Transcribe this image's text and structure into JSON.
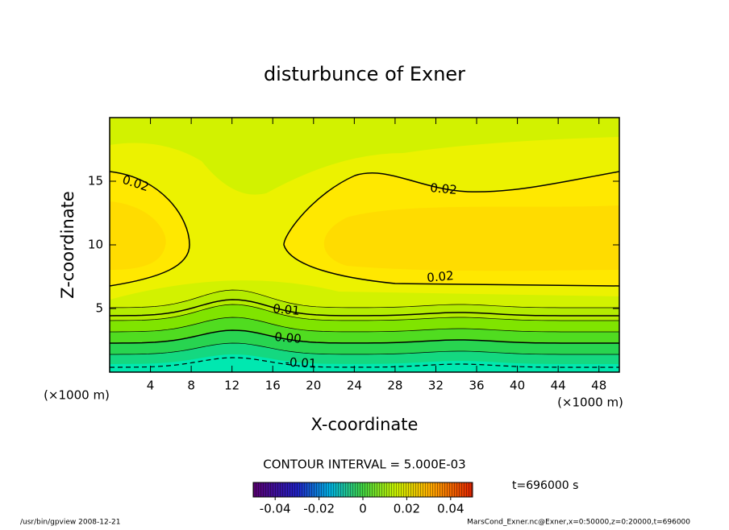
{
  "chart_data": {
    "type": "contour",
    "title": "disturbunce of Exner",
    "x_label": "X-coordinate",
    "y_label": "Z-coordinate",
    "x_unit": "(×1000 m)",
    "y_unit": "(×1000 m)",
    "xlim": [
      0,
      50
    ],
    "ylim": [
      0,
      20
    ],
    "xticks": [
      4,
      8,
      12,
      16,
      20,
      24,
      28,
      32,
      36,
      40,
      44,
      48
    ],
    "yticks": [
      5,
      10,
      15
    ],
    "contour_levels": [
      0.02,
      0.01,
      {
        "value": 0,
        "label": "0.00"
      },
      -0.01
    ],
    "contour_interval_text": "CONTOUR INTERVAL = 5.000E-03",
    "time_text": "t=696000 s",
    "colorbar_lim": [
      -0.05,
      0.05
    ],
    "colorbar_ticks": [
      -0.04,
      -0.02,
      0,
      0.02,
      0.04
    ],
    "footer_left": "/usr/bin/gpview   2008-12-21",
    "footer_right": "MarsCond_Exner.nc@Exner,x=0:50000,z=0:20000,t=696000"
  }
}
